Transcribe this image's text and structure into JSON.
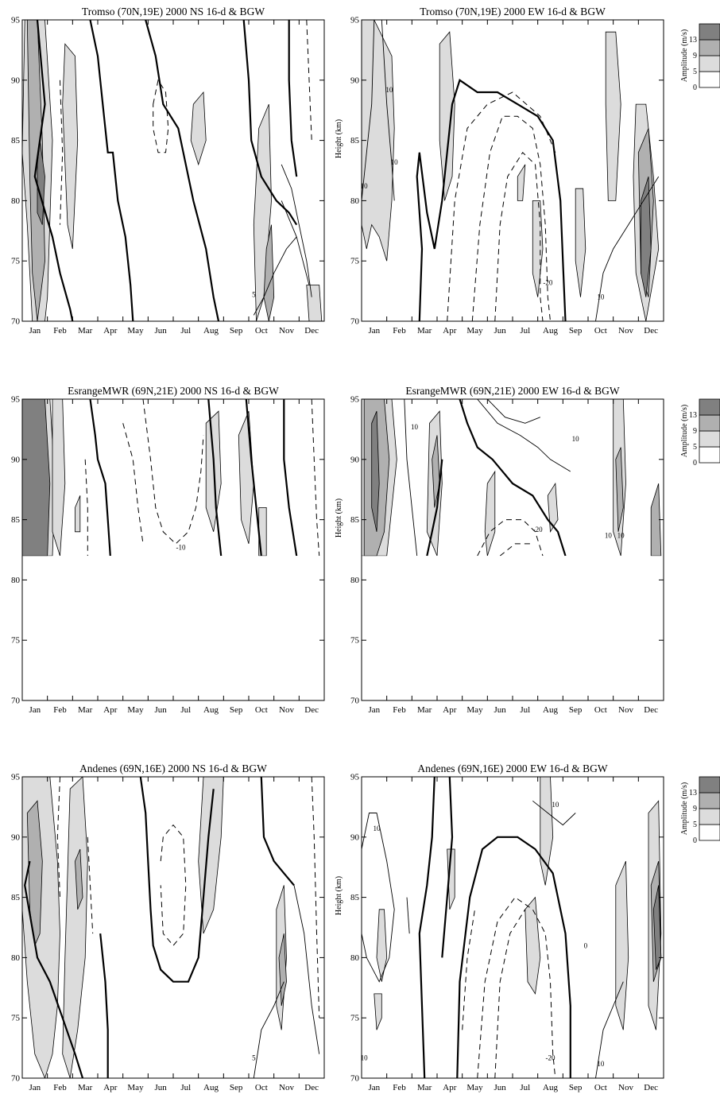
{
  "months": [
    "Jan",
    "Feb",
    "Mar",
    "Apr",
    "May",
    "Jun",
    "Jul",
    "Aug",
    "Sep",
    "Oct",
    "Nov",
    "Dec"
  ],
  "height_ticks": [
    70,
    75,
    80,
    85,
    90,
    95
  ],
  "height_label": "Height (km)",
  "legend": {
    "title": "Amplitude (m/s)",
    "levels": [
      0,
      5,
      9,
      13
    ],
    "colors": [
      "#ffffff",
      "#dcdcdc",
      "#b0b0b0",
      "#808080"
    ]
  },
  "chart_data": [
    {
      "type": "contour",
      "row": 0,
      "col": 0,
      "title": "Tromso (70N,19E) 2000 NS 16-d & BGW",
      "ylabel": "",
      "xlim": [
        0,
        12
      ],
      "ylim": [
        70,
        95
      ],
      "data_top_km": 95,
      "labels": [
        {
          "text": "5",
          "x": 9.2,
          "y": 72.0
        }
      ],
      "legend": true
    },
    {
      "type": "contour",
      "row": 0,
      "col": 1,
      "title": "Tromso (70N,19E) 2000 EW 16-d & BGW",
      "ylabel": "Height (km)",
      "xlim": [
        0,
        12
      ],
      "ylim": [
        70,
        95
      ],
      "data_top_km": 95,
      "labels": [
        {
          "text": "10",
          "x": 1.1,
          "y": 89.0
        },
        {
          "text": "10",
          "x": 1.3,
          "y": 83.0
        },
        {
          "text": "10",
          "x": 0.1,
          "y": 81.0
        },
        {
          "text": "-20",
          "x": 7.4,
          "y": 73.0
        },
        {
          "text": "10",
          "x": 9.5,
          "y": 71.8
        }
      ],
      "legend": true
    },
    {
      "type": "contour",
      "row": 1,
      "col": 0,
      "title": "EsrangeMWR (69N,21E) 2000 NS 16-d & BGW",
      "ylabel": "",
      "xlim": [
        0,
        12
      ],
      "ylim": [
        70,
        95
      ],
      "data_top_km": 82,
      "labels": [
        {
          "text": "-10",
          "x": 6.3,
          "y": 82.5
        }
      ],
      "legend": false
    },
    {
      "type": "contour",
      "row": 1,
      "col": 1,
      "title": "EsrangeMWR (69N,21E) 2000 EW 16-d & BGW",
      "ylabel": "Height (km)",
      "xlim": [
        0,
        12
      ],
      "ylim": [
        70,
        95
      ],
      "data_top_km": 82,
      "labels": [
        {
          "text": "10",
          "x": 2.1,
          "y": 92.5
        },
        {
          "text": "10",
          "x": 8.5,
          "y": 91.5
        },
        {
          "text": "-20",
          "x": 7.0,
          "y": 84.0
        },
        {
          "text": "10",
          "x": 9.8,
          "y": 83.5
        },
        {
          "text": "10",
          "x": 10.3,
          "y": 83.5
        }
      ],
      "legend": true
    },
    {
      "type": "contour",
      "row": 2,
      "col": 0,
      "title": "Andenes (69N,16E) 2000 NS 16-d & BGW",
      "ylabel": "",
      "xlim": [
        0,
        12
      ],
      "ylim": [
        70,
        95
      ],
      "data_top_km": 95,
      "labels": [
        {
          "text": "5",
          "x": 9.2,
          "y": 71.5
        }
      ],
      "legend": false
    },
    {
      "type": "contour",
      "row": 2,
      "col": 1,
      "title": "Andenes (69N,16E) 2000 EW 16-d & BGW",
      "ylabel": "Height (km)",
      "xlim": [
        0,
        12
      ],
      "ylim": [
        70,
        95
      ],
      "data_top_km": 95,
      "labels": [
        {
          "text": "10",
          "x": 0.6,
          "y": 90.5
        },
        {
          "text": "10",
          "x": 7.7,
          "y": 92.5
        },
        {
          "text": "10",
          "x": 0.1,
          "y": 71.5
        },
        {
          "text": "-20",
          "x": 7.5,
          "y": 71.5
        },
        {
          "text": "10",
          "x": 9.5,
          "y": 71.0
        },
        {
          "text": "0",
          "x": 8.9,
          "y": 80.8
        }
      ],
      "legend": true
    }
  ]
}
